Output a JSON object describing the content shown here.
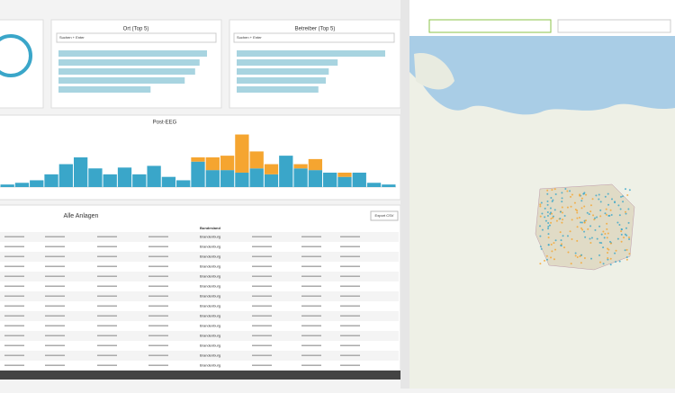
{
  "panels": {
    "ort_title": "Ort (Top 5)",
    "betreiber_title": "Betreiber (Top 5)",
    "table_title": "Alle Anlagen",
    "export": "Export CSV",
    "search": "Suchen + Enter"
  },
  "ort_chart": {
    "type": "bar",
    "values": [
      100,
      95,
      92,
      85,
      62
    ],
    "xlim": [
      0,
      100
    ],
    "color": "#a8d4e0"
  },
  "betreiber_chart": {
    "type": "bar",
    "values": [
      100,
      68,
      62,
      60,
      55
    ],
    "xlim": [
      0,
      100
    ],
    "color": "#a8d4e0"
  },
  "chart_data": {
    "type": "bar",
    "title": "Post-EEG",
    "categories": [
      null,
      null,
      null,
      null,
      null,
      null,
      null,
      null,
      null,
      null,
      null,
      null,
      null,
      null,
      null,
      null,
      null,
      null,
      null,
      null,
      null,
      null,
      null,
      null,
      null,
      null,
      null
    ],
    "ylim": [
      0,
      70
    ],
    "series": [
      {
        "color": "#3aa6c9",
        "values": [
          3,
          5,
          8,
          15,
          27,
          35,
          22,
          15,
          23,
          15,
          25,
          12,
          8,
          30,
          20,
          20,
          17,
          22,
          15,
          37,
          22,
          20,
          17,
          12,
          17,
          5,
          3
        ]
      },
      {
        "color": "#f5a530",
        "values": [
          0,
          0,
          0,
          0,
          0,
          0,
          0,
          0,
          0,
          0,
          0,
          0,
          0,
          5,
          15,
          17,
          45,
          20,
          12,
          0,
          5,
          13,
          0,
          5,
          0,
          0,
          0
        ]
      }
    ]
  },
  "table": {
    "column": "Bundesland",
    "rows": [
      "Brandenburg",
      "Brandenburg",
      "Brandenburg",
      "Brandenburg",
      "Brandenburg",
      "Brandenburg",
      "Brandenburg",
      "Brandenburg",
      "Brandenburg",
      "Brandenburg",
      "Brandenburg",
      "Brandenburg",
      "Brandenburg",
      "Brandenburg"
    ]
  }
}
